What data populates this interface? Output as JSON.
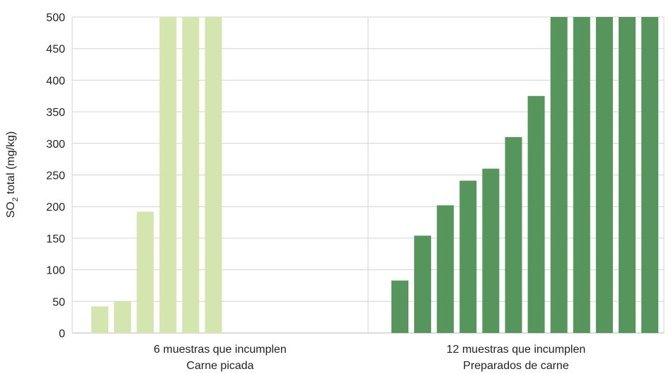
{
  "chart_data": {
    "type": "bar",
    "ylabel": {
      "prefix": "SO",
      "subscript": "2",
      "suffix": " total (mg/kg)"
    },
    "ylim": [
      0,
      500
    ],
    "yticks": [
      0,
      50,
      100,
      150,
      200,
      250,
      300,
      350,
      400,
      450,
      500
    ],
    "grid": true,
    "groups": [
      {
        "line1": "6 muestras que incumplen",
        "line2": "Carne picada",
        "color": "#d5e5ae",
        "values": [
          42,
          50,
          192,
          500,
          500,
          500
        ]
      },
      {
        "line1": "12 muestras que incumplen",
        "line2": "Preparados de carne",
        "color": "#56965d",
        "values": [
          83,
          154,
          202,
          241,
          260,
          310,
          375,
          500,
          500,
          500,
          500,
          500
        ]
      }
    ]
  }
}
